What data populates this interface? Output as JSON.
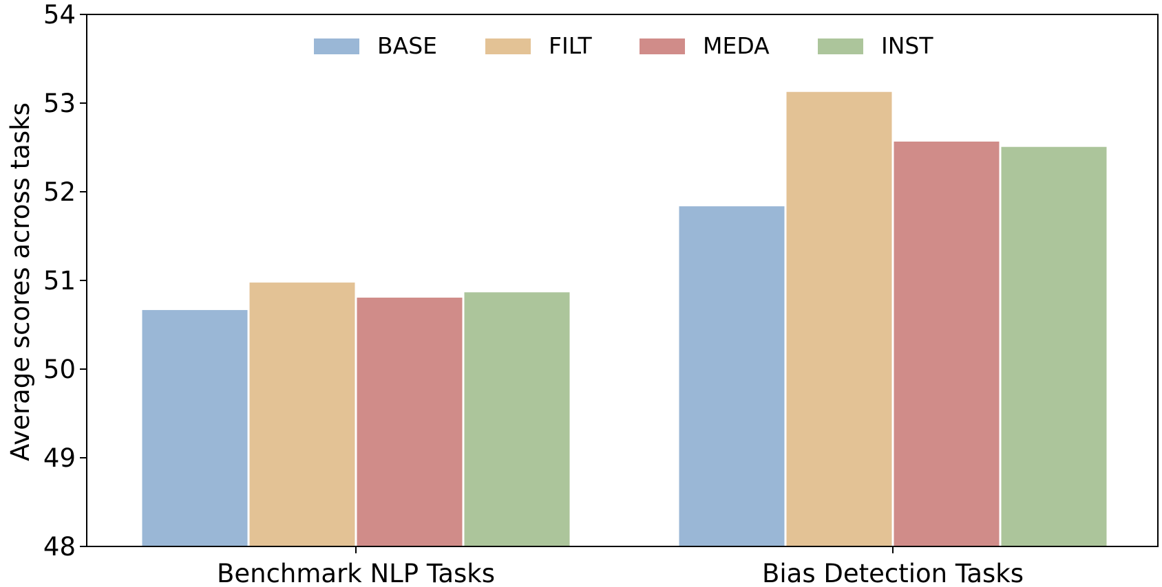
{
  "chart_data": {
    "type": "bar",
    "title": "",
    "xlabel": "",
    "ylabel": "Average scores across tasks",
    "ylim": [
      48,
      54
    ],
    "yticks": [
      48,
      49,
      50,
      51,
      52,
      53,
      54
    ],
    "categories": [
      "Benchmark NLP Tasks",
      "Bias Detection Tasks"
    ],
    "series": [
      {
        "name": "BASE",
        "color": "#9ab7d6",
        "values": [
          50.67,
          51.84
        ]
      },
      {
        "name": "FILT",
        "color": "#e3c295",
        "values": [
          50.98,
          53.13
        ]
      },
      {
        "name": "MEDA",
        "color": "#d08c89",
        "values": [
          50.81,
          52.57
        ]
      },
      {
        "name": "INST",
        "color": "#acc59b",
        "values": [
          50.87,
          52.51
        ]
      }
    ],
    "grid": false,
    "legend": "top-center"
  }
}
